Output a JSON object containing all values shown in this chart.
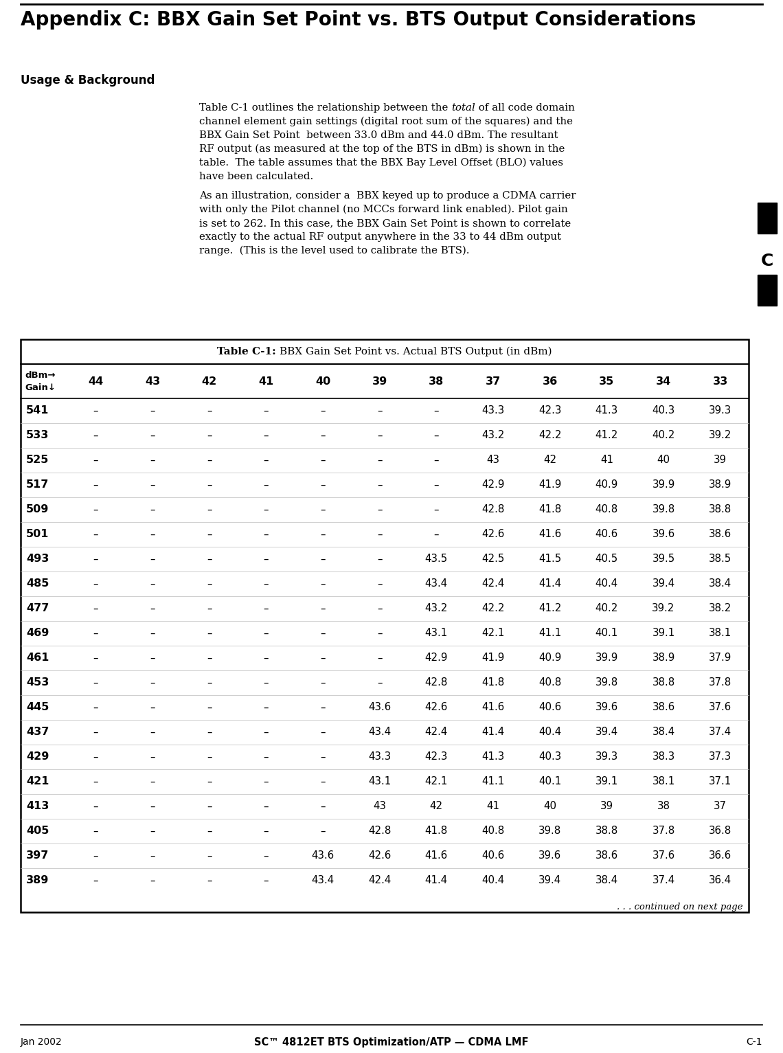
{
  "title": "Appendix C: BBX Gain Set Point vs. BTS Output Considerations",
  "section_label": "Usage & Background",
  "sidebar_letter": "C",
  "para1_pre_italic": "Table C-1 outlines the relationship between the ",
  "para1_italic": "total",
  "para1_post_italic": " of all code domain",
  "para1_rest": [
    "channel element gain settings (digital root sum of the squares) and the",
    "BBX Gain Set Point  between 33.0 dBm and 44.0 dBm. The resultant",
    "RF output (as measured at the top of the BTS in dBm) is shown in the",
    "table.  The table assumes that the BBX Bay Level Offset (BLO) values",
    "have been calculated."
  ],
  "para2": [
    "As an illustration, consider a  BBX keyed up to produce a CDMA carrier",
    "with only the Pilot channel (no MCCs forward link enabled). Pilot gain",
    "is set to 262. In this case, the BBX Gain Set Point is shown to correlate",
    "exactly to the actual RF output anywhere in the 33 to 44 dBm output",
    "range.  (This is the level used to calibrate the BTS)."
  ],
  "table_title_bold": "Table C-1: ",
  "table_title_normal": "BBX Gain Set Point vs. Actual BTS Output (in dBm)",
  "col_headers": [
    "44",
    "43",
    "42",
    "41",
    "40",
    "39",
    "38",
    "37",
    "36",
    "35",
    "34",
    "33"
  ],
  "table_data": [
    [
      "541",
      "–",
      "–",
      "–",
      "–",
      "–",
      "–",
      "–",
      "43.3",
      "42.3",
      "41.3",
      "40.3",
      "39.3"
    ],
    [
      "533",
      "–",
      "–",
      "–",
      "–",
      "–",
      "–",
      "–",
      "43.2",
      "42.2",
      "41.2",
      "40.2",
      "39.2"
    ],
    [
      "525",
      "–",
      "–",
      "–",
      "–",
      "–",
      "–",
      "–",
      "43",
      "42",
      "41",
      "40",
      "39"
    ],
    [
      "517",
      "–",
      "–",
      "–",
      "–",
      "–",
      "–",
      "–",
      "42.9",
      "41.9",
      "40.9",
      "39.9",
      "38.9"
    ],
    [
      "509",
      "–",
      "–",
      "–",
      "–",
      "–",
      "–",
      "–",
      "42.8",
      "41.8",
      "40.8",
      "39.8",
      "38.8"
    ],
    [
      "501",
      "–",
      "–",
      "–",
      "–",
      "–",
      "–",
      "–",
      "42.6",
      "41.6",
      "40.6",
      "39.6",
      "38.6"
    ],
    [
      "493",
      "–",
      "–",
      "–",
      "–",
      "–",
      "–",
      "43.5",
      "42.5",
      "41.5",
      "40.5",
      "39.5",
      "38.5"
    ],
    [
      "485",
      "–",
      "–",
      "–",
      "–",
      "–",
      "–",
      "43.4",
      "42.4",
      "41.4",
      "40.4",
      "39.4",
      "38.4"
    ],
    [
      "477",
      "–",
      "–",
      "–",
      "–",
      "–",
      "–",
      "43.2",
      "42.2",
      "41.2",
      "40.2",
      "39.2",
      "38.2"
    ],
    [
      "469",
      "–",
      "–",
      "–",
      "–",
      "–",
      "–",
      "43.1",
      "42.1",
      "41.1",
      "40.1",
      "39.1",
      "38.1"
    ],
    [
      "461",
      "–",
      "–",
      "–",
      "–",
      "–",
      "–",
      "42.9",
      "41.9",
      "40.9",
      "39.9",
      "38.9",
      "37.9"
    ],
    [
      "453",
      "–",
      "–",
      "–",
      "–",
      "–",
      "–",
      "42.8",
      "41.8",
      "40.8",
      "39.8",
      "38.8",
      "37.8"
    ],
    [
      "445",
      "–",
      "–",
      "–",
      "–",
      "–",
      "43.6",
      "42.6",
      "41.6",
      "40.6",
      "39.6",
      "38.6",
      "37.6"
    ],
    [
      "437",
      "–",
      "–",
      "–",
      "–",
      "–",
      "43.4",
      "42.4",
      "41.4",
      "40.4",
      "39.4",
      "38.4",
      "37.4"
    ],
    [
      "429",
      "–",
      "–",
      "–",
      "–",
      "–",
      "43.3",
      "42.3",
      "41.3",
      "40.3",
      "39.3",
      "38.3",
      "37.3"
    ],
    [
      "421",
      "–",
      "–",
      "–",
      "–",
      "–",
      "43.1",
      "42.1",
      "41.1",
      "40.1",
      "39.1",
      "38.1",
      "37.1"
    ],
    [
      "413",
      "–",
      "–",
      "–",
      "–",
      "–",
      "43",
      "42",
      "41",
      "40",
      "39",
      "38",
      "37"
    ],
    [
      "405",
      "–",
      "–",
      "–",
      "–",
      "–",
      "42.8",
      "41.8",
      "40.8",
      "39.8",
      "38.8",
      "37.8",
      "36.8"
    ],
    [
      "397",
      "–",
      "–",
      "–",
      "–",
      "43.6",
      "42.6",
      "41.6",
      "40.6",
      "39.6",
      "38.6",
      "37.6",
      "36.6"
    ],
    [
      "389",
      "–",
      "–",
      "–",
      "–",
      "43.4",
      "42.4",
      "41.4",
      "40.4",
      "39.4",
      "38.4",
      "37.4",
      "36.4"
    ]
  ],
  "continued_text": ". . . continued on next page",
  "footer_left": "Jan 2002",
  "footer_center": "SC™ 4812ET BTS Optimization/ATP — CDMA LMF",
  "footer_right": "C-1",
  "bg_color": "#ffffff",
  "text_color": "#000000"
}
